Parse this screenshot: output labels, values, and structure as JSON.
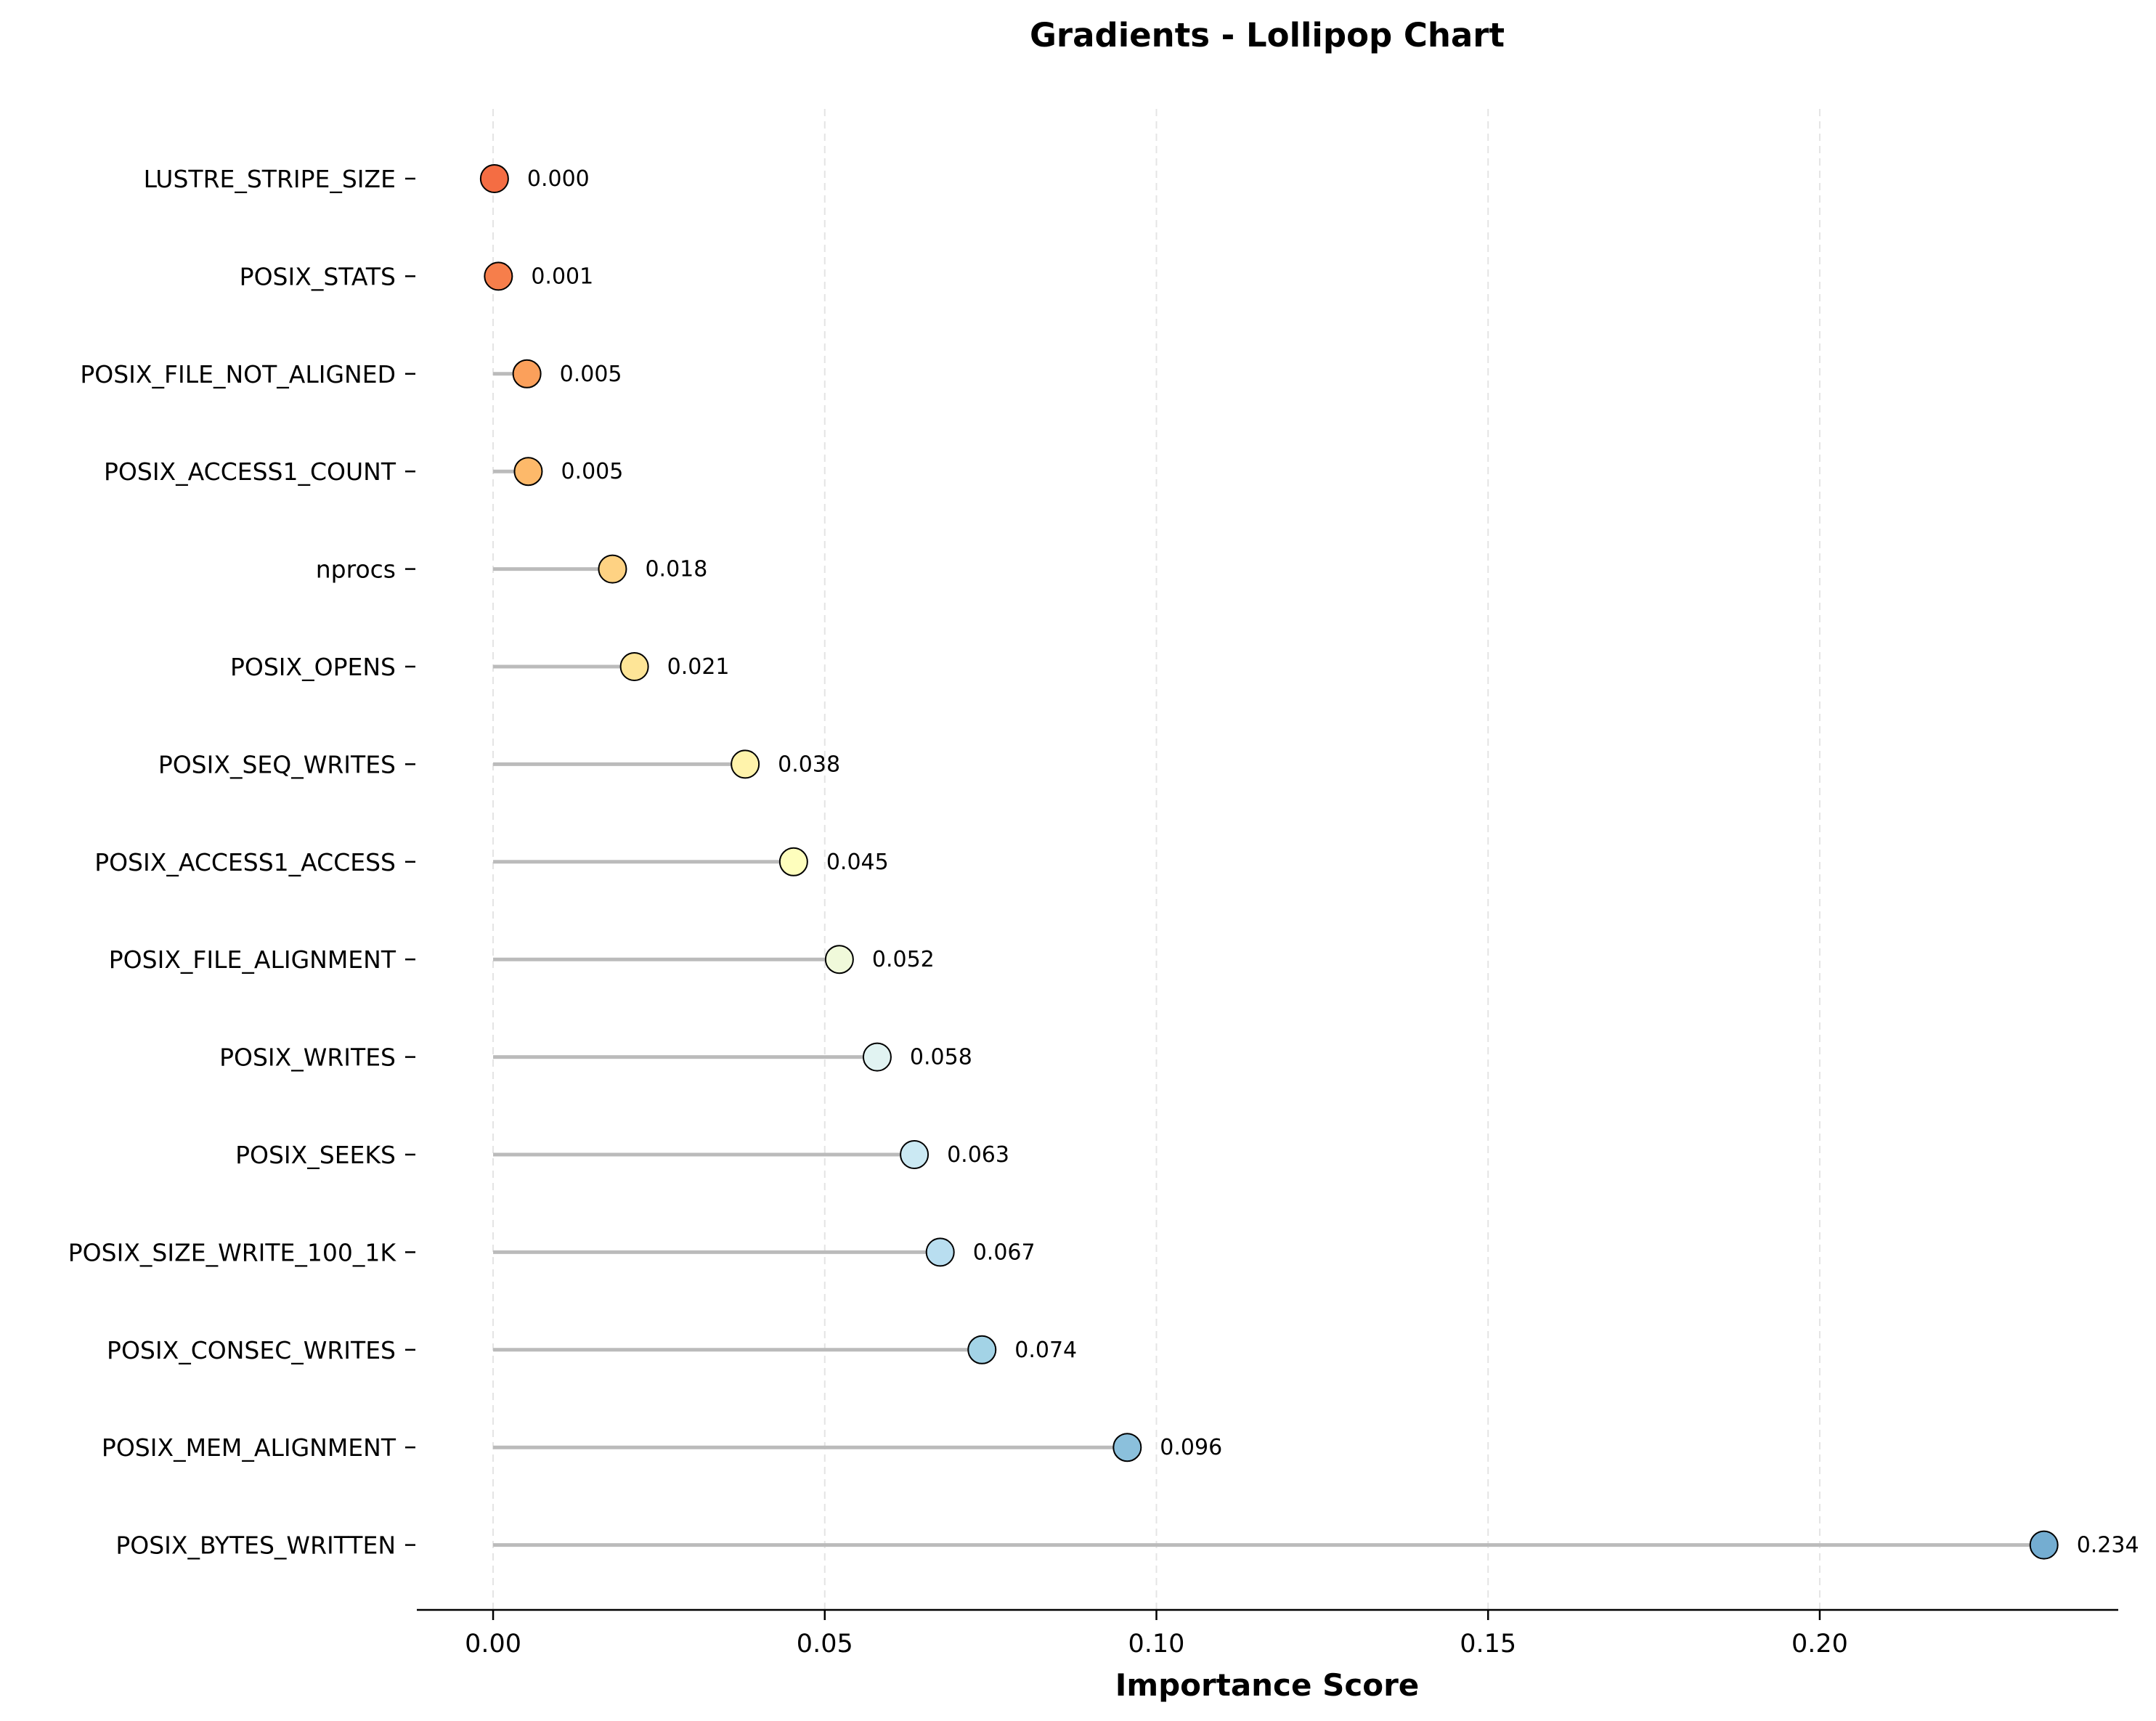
{
  "chart_data": {
    "type": "lollipop",
    "title": "Gradients - Lollipop Chart",
    "xlabel": "Importance Score",
    "ylabel": "",
    "xlim": [
      -0.0115,
      0.245
    ],
    "xticks": [
      0.0,
      0.05,
      0.1,
      0.15,
      0.2
    ],
    "xtick_labels": [
      "0.00",
      "0.05",
      "0.10",
      "0.15",
      "0.20"
    ],
    "grid": "x-dashed",
    "categories": [
      "LUSTRE_STRIPE_SIZE",
      "POSIX_STATS",
      "POSIX_FILE_NOT_ALIGNED",
      "POSIX_ACCESS1_COUNT",
      "nprocs",
      "POSIX_OPENS",
      "POSIX_SEQ_WRITES",
      "POSIX_ACCESS1_ACCESS",
      "POSIX_FILE_ALIGNMENT",
      "POSIX_WRITES",
      "POSIX_SEEKS",
      "POSIX_SIZE_WRITE_100_1K",
      "POSIX_CONSEC_WRITES",
      "POSIX_MEM_ALIGNMENT",
      "POSIX_BYTES_WRITTEN"
    ],
    "values": [
      0.0002,
      0.0008,
      0.0051,
      0.0053,
      0.018,
      0.0213,
      0.038,
      0.0453,
      0.0522,
      0.0579,
      0.0635,
      0.0674,
      0.0737,
      0.0956,
      0.2338
    ],
    "value_labels": [
      "0.000",
      "0.001",
      "0.005",
      "0.005",
      "0.018",
      "0.021",
      "0.038",
      "0.045",
      "0.052",
      "0.058",
      "0.063",
      "0.067",
      "0.074",
      "0.096",
      "0.234"
    ],
    "colors": [
      "#f46d43",
      "#f67e4b",
      "#fba05b",
      "#fdb96a",
      "#fed283",
      "#fee597",
      "#fff3ab",
      "#fefebd",
      "#f0f9da",
      "#e1f3f2",
      "#cbe9f3",
      "#b9def0",
      "#a3d3e6",
      "#8bc0dc",
      "#74add1"
    ],
    "stem_color": "#bbbbbb",
    "marker_edge_color": "#000000"
  }
}
